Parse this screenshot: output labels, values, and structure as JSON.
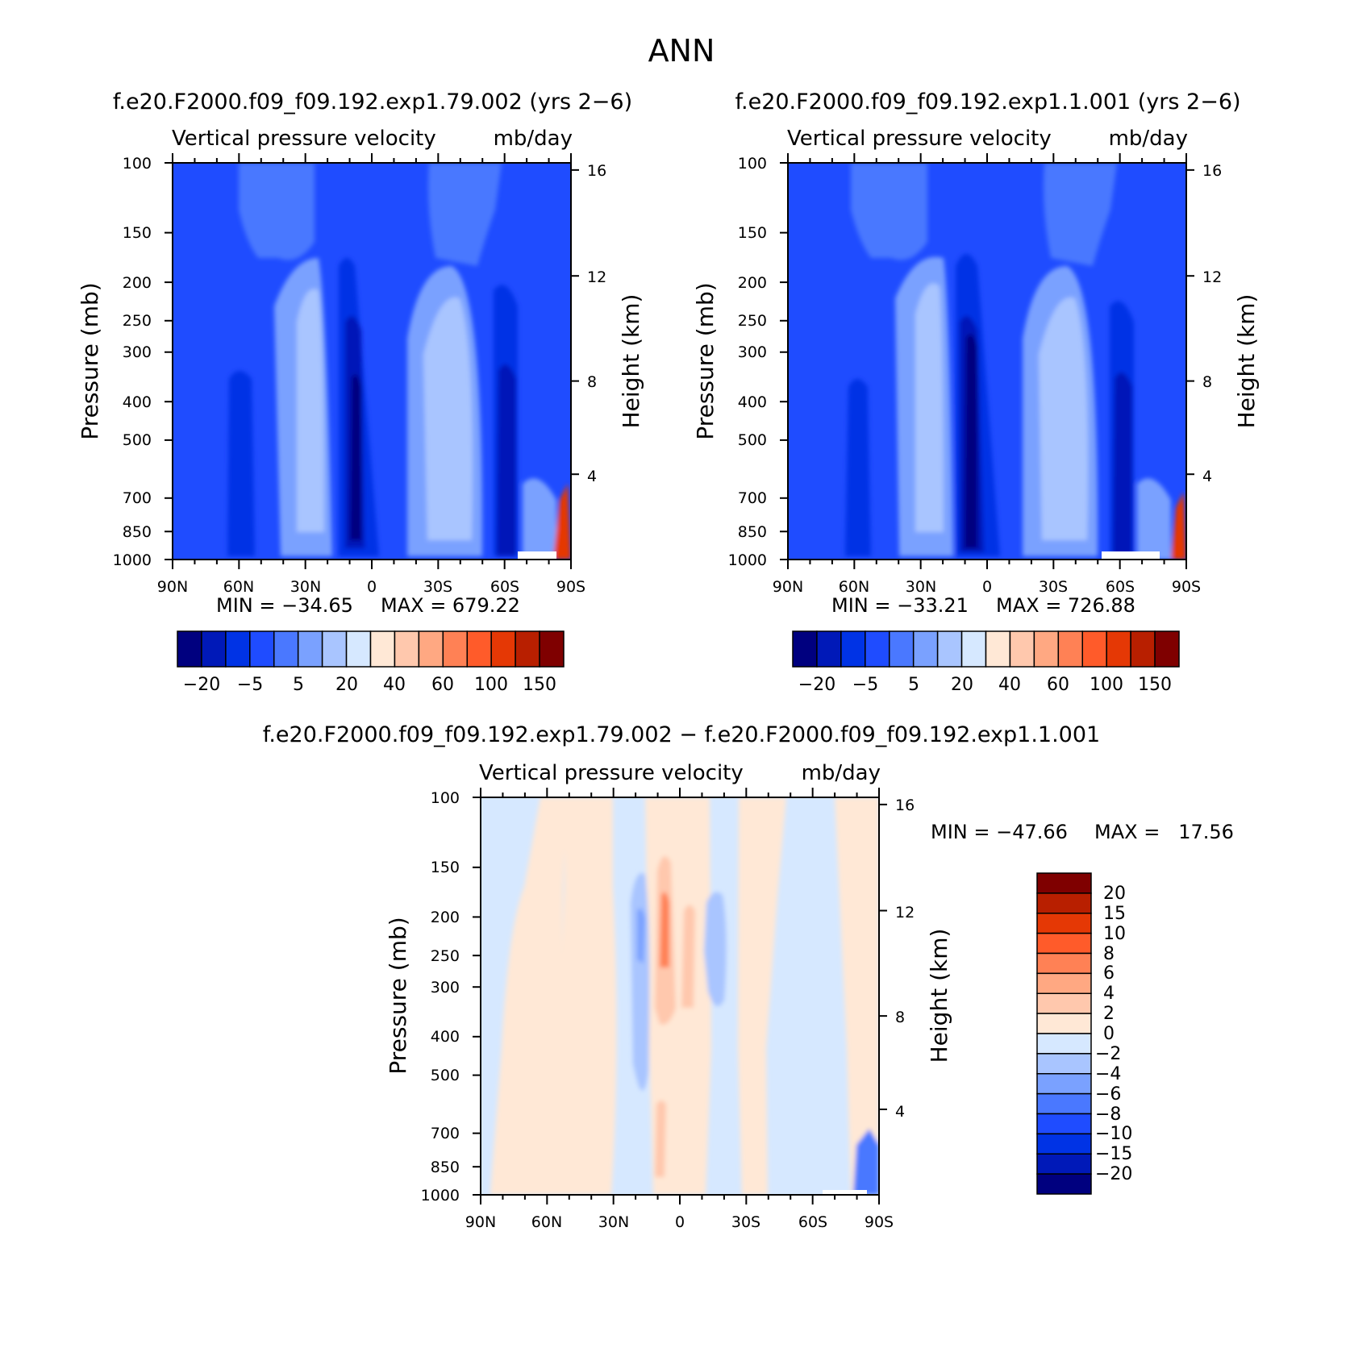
{
  "figure": {
    "title": "ANN",
    "diff_title": "f.e20.F2000.f09_f09.192.exp1.79.002 − f.e20.F2000.f09_f09.192.exp1.1.001"
  },
  "colors": {
    "abs_palette": [
      "#00007f",
      "#0019b8",
      "#0033e5",
      "#1f4cff",
      "#4a78ff",
      "#7aa1ff",
      "#a9c5ff",
      "#d6e8ff",
      "#ffe8d6",
      "#ffc8ad",
      "#ffa882",
      "#ff8155",
      "#ff5b2a",
      "#e53805",
      "#b81f00",
      "#7f0000"
    ],
    "diff_palette": [
      "#00007f",
      "#0019b8",
      "#0033e5",
      "#1f4cff",
      "#4a78ff",
      "#7aa1ff",
      "#a9c5ff",
      "#d6e8ff",
      "#ffe8d6",
      "#ffc8ad",
      "#ffa882",
      "#ff8155",
      "#ff5b2a",
      "#e53805",
      "#b81f00",
      "#7f0000"
    ]
  },
  "chart_data": [
    {
      "type": "heatmap",
      "title": "f.e20.F2000.f09_f09.192.exp1.79.002 (yrs 2−6)",
      "subtitle_left": "Vertical pressure velocity",
      "subtitle_right": "mb/day",
      "xlabel": "",
      "ylabel": "Pressure (mb)",
      "ylabel_right": "Height (km)",
      "x_ticks": [
        "90N",
        "60N",
        "30N",
        "0",
        "30S",
        "60S",
        "90S"
      ],
      "y_ticks": [
        "100",
        "150",
        "200",
        "250",
        "300",
        "400",
        "500",
        "700",
        "850",
        "1000"
      ],
      "y_ticks_right": [
        "16",
        "12",
        "8",
        "4"
      ],
      "ylim": [
        1000,
        100
      ],
      "y_scale": "log",
      "min_label": "MIN = −34.65",
      "max_label": "MAX = 679.22",
      "colorbar_labels": [
        "−20",
        "−5",
        "5",
        "20",
        "40",
        "60",
        "100",
        "150"
      ],
      "field_summary": [
        {
          "lat": "8N",
          "pressure_range": [
            250,
            1000
          ],
          "approx_value": -25
        },
        {
          "lat": "40S",
          "pressure_range": [
            250,
            850
          ],
          "approx_value": 20
        },
        {
          "lat": "40N",
          "pressure_range": [
            250,
            850
          ],
          "approx_value": 15
        },
        {
          "lat": "80S-90S",
          "pressure_range": [
            700,
            1000
          ],
          "approx_value": 150
        }
      ]
    },
    {
      "type": "heatmap",
      "title": "f.e20.F2000.f09_f09.192.exp1.1.001 (yrs 2−6)",
      "subtitle_left": "Vertical pressure velocity",
      "subtitle_right": "mb/day",
      "xlabel": "",
      "ylabel": "Pressure (mb)",
      "ylabel_right": "Height (km)",
      "x_ticks": [
        "90N",
        "60N",
        "30N",
        "0",
        "30S",
        "60S",
        "90S"
      ],
      "y_ticks": [
        "100",
        "150",
        "200",
        "250",
        "300",
        "400",
        "500",
        "700",
        "850",
        "1000"
      ],
      "y_ticks_right": [
        "16",
        "12",
        "8",
        "4"
      ],
      "ylim": [
        1000,
        100
      ],
      "y_scale": "log",
      "min_label": "MIN = −33.21",
      "max_label": "MAX = 726.88",
      "colorbar_labels": [
        "−20",
        "−5",
        "5",
        "20",
        "40",
        "60",
        "100",
        "150"
      ],
      "field_summary": [
        {
          "lat": "8N",
          "pressure_range": [
            300,
            1000
          ],
          "approx_value": -25
        },
        {
          "lat": "40S",
          "pressure_range": [
            250,
            850
          ],
          "approx_value": 20
        },
        {
          "lat": "40N",
          "pressure_range": [
            200,
            850
          ],
          "approx_value": 15
        },
        {
          "lat": "80S-90S",
          "pressure_range": [
            700,
            1000
          ],
          "approx_value": 150
        }
      ]
    },
    {
      "type": "heatmap",
      "title": "f.e20.F2000.f09_f09.192.exp1.79.002 − f.e20.F2000.f09_f09.192.exp1.1.001",
      "subtitle_left": "Vertical pressure velocity",
      "subtitle_right": "mb/day",
      "xlabel": "",
      "ylabel": "Pressure (mb)",
      "ylabel_right": "Height (km)",
      "x_ticks": [
        "90N",
        "60N",
        "30N",
        "0",
        "30S",
        "60S",
        "90S"
      ],
      "y_ticks": [
        "100",
        "150",
        "200",
        "250",
        "300",
        "400",
        "500",
        "700",
        "850",
        "1000"
      ],
      "y_ticks_right": [
        "16",
        "12",
        "8",
        "4"
      ],
      "ylim": [
        1000,
        100
      ],
      "y_scale": "log",
      "min_label": "MIN = −47.66",
      "max_label": "MAX =   17.56",
      "colorbar_labels": [
        "20",
        "15",
        "10",
        "8",
        "6",
        "4",
        "2",
        "0",
        "−2",
        "−4",
        "−6",
        "−8",
        "−10",
        "−15",
        "−20"
      ],
      "field_summary": [
        {
          "lat": "5N",
          "pressure_range": [
            150,
            350
          ],
          "approx_value": 8
        },
        {
          "lat": "15N",
          "pressure_range": [
            150,
            700
          ],
          "approx_value": -4
        },
        {
          "lat": "15S",
          "pressure_range": [
            200,
            350
          ],
          "approx_value": -3
        },
        {
          "lat": "5S",
          "pressure_range": [
            200,
            500
          ],
          "approx_value": 3
        }
      ]
    }
  ]
}
